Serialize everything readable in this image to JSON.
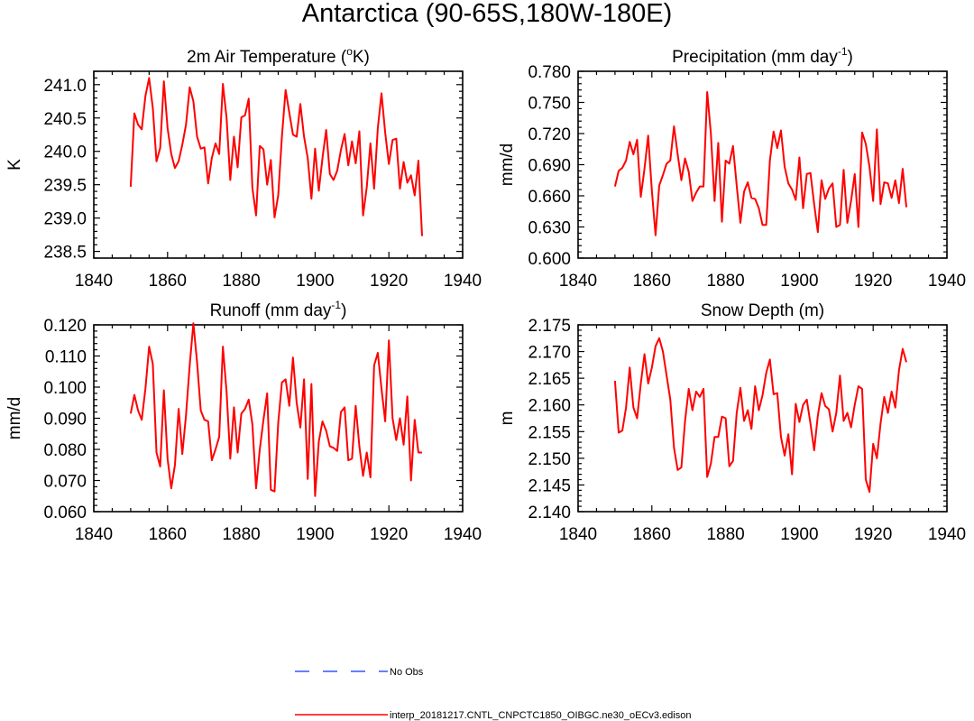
{
  "title": "Antarctica (90-65S,180W-180E)",
  "series_colors": {
    "model": "#ff0000",
    "obs": "#3355ff"
  },
  "legend": {
    "obs_label": "No Obs",
    "model_label": "interp_20181217.CNTL_CNPCTC1850_OIBGC.ne30_oECv3.edison"
  },
  "chart_data": [
    {
      "type": "line",
      "title": "2m Air Temperature (",
      "title_sup": "o",
      "title_after": "K)",
      "xlabel": "",
      "ylabel": "K",
      "xlim": [
        1840,
        1940
      ],
      "ylim": [
        238.4,
        241.2
      ],
      "xticks": [
        1840,
        1860,
        1880,
        1900,
        1920,
        1940
      ],
      "xtick_labels": [
        "1840",
        "1860",
        "1880",
        "1900",
        "1920",
        "1940"
      ],
      "yticks": [
        238.5,
        239.0,
        239.5,
        240.0,
        240.5,
        241.0
      ],
      "ytick_labels": [
        "238.5",
        "239.0",
        "239.5",
        "240.0",
        "240.5",
        "241.0"
      ],
      "series": [
        {
          "name": "interp_20181217.CNTL_CNPCTC1850_OIBGC.ne30_oECv3.edison",
          "x_start": 1850,
          "values": [
            239.47,
            240.57,
            240.4,
            240.33,
            240.83,
            241.1,
            240.65,
            239.85,
            240.05,
            241.05,
            240.35,
            239.96,
            239.75,
            239.85,
            240.1,
            240.4,
            240.96,
            240.75,
            240.22,
            240.04,
            240.06,
            239.52,
            239.9,
            240.12,
            239.96,
            241.01,
            240.5,
            239.57,
            240.22,
            239.76,
            240.51,
            240.54,
            240.79,
            239.45,
            239.04,
            240.08,
            240.03,
            239.5,
            239.87,
            239.01,
            239.34,
            240.22,
            240.92,
            240.58,
            240.25,
            240.22,
            240.71,
            240.22,
            239.9,
            239.29,
            240.04,
            239.41,
            239.9,
            240.32,
            239.66,
            239.57,
            239.71,
            240.02,
            240.26,
            239.79,
            240.15,
            239.82,
            240.3,
            239.04,
            239.46,
            240.12,
            239.44,
            240.35,
            240.87,
            240.28,
            239.81,
            240.17,
            240.19,
            239.44,
            239.84,
            239.53,
            239.64,
            239.34,
            239.86,
            238.73
          ]
        }
      ]
    },
    {
      "type": "line",
      "title": "Precipitation (mm day",
      "title_sup": "-1",
      "title_after": ")",
      "xlabel": "",
      "ylabel": "mm/d",
      "xlim": [
        1840,
        1940
      ],
      "ylim": [
        0.6,
        0.78
      ],
      "xticks": [
        1840,
        1860,
        1880,
        1900,
        1920,
        1940
      ],
      "xtick_labels": [
        "1840",
        "1860",
        "1880",
        "1900",
        "1920",
        "1940"
      ],
      "yticks": [
        0.6,
        0.63,
        0.66,
        0.69,
        0.72,
        0.75,
        0.78
      ],
      "ytick_labels": [
        "0.600",
        "0.630",
        "0.660",
        "0.690",
        "0.720",
        "0.750",
        "0.780"
      ],
      "series": [
        {
          "name": "interp_20181217.CNTL_CNPCTC1850_OIBGC.ne30_oECv3.edison",
          "x_start": 1850,
          "values": [
            0.669,
            0.684,
            0.687,
            0.694,
            0.712,
            0.7,
            0.714,
            0.659,
            0.686,
            0.718,
            0.665,
            0.622,
            0.67,
            0.68,
            0.691,
            0.694,
            0.727,
            0.7,
            0.675,
            0.696,
            0.683,
            0.655,
            0.663,
            0.669,
            0.669,
            0.76,
            0.72,
            0.655,
            0.711,
            0.635,
            0.694,
            0.691,
            0.708,
            0.67,
            0.634,
            0.664,
            0.673,
            0.658,
            0.657,
            0.648,
            0.632,
            0.632,
            0.694,
            0.722,
            0.706,
            0.723,
            0.688,
            0.672,
            0.666,
            0.656,
            0.697,
            0.648,
            0.681,
            0.682,
            0.652,
            0.625,
            0.675,
            0.657,
            0.667,
            0.672,
            0.63,
            0.632,
            0.685,
            0.634,
            0.655,
            0.681,
            0.63,
            0.721,
            0.71,
            0.688,
            0.655,
            0.724,
            0.652,
            0.673,
            0.672,
            0.658,
            0.675,
            0.653,
            0.686,
            0.649
          ]
        }
      ]
    },
    {
      "type": "line",
      "title": "Runoff (mm day",
      "title_sup": "-1",
      "title_after": ")",
      "xlabel": "",
      "ylabel": "mm/d",
      "xlim": [
        1840,
        1940
      ],
      "ylim": [
        0.06,
        0.12
      ],
      "xticks": [
        1840,
        1860,
        1880,
        1900,
        1920,
        1940
      ],
      "xtick_labels": [
        "1840",
        "1860",
        "1880",
        "1900",
        "1920",
        "1940"
      ],
      "yticks": [
        0.06,
        0.07,
        0.08,
        0.09,
        0.1,
        0.11,
        0.12
      ],
      "ytick_labels": [
        "0.060",
        "0.070",
        "0.080",
        "0.090",
        "0.100",
        "0.110",
        "0.120"
      ],
      "series": [
        {
          "name": "interp_20181217.CNTL_CNPCTC1850_OIBGC.ne30_oECv3.edison",
          "x_start": 1850,
          "values": [
            0.0915,
            0.0975,
            0.0925,
            0.0895,
            0.0995,
            0.113,
            0.1075,
            0.079,
            0.0745,
            0.099,
            0.077,
            0.0675,
            0.075,
            0.093,
            0.0785,
            0.091,
            0.107,
            0.1205,
            0.108,
            0.0925,
            0.0895,
            0.089,
            0.0765,
            0.08,
            0.084,
            0.113,
            0.0985,
            0.077,
            0.0935,
            0.079,
            0.0915,
            0.093,
            0.096,
            0.088,
            0.0675,
            0.08,
            0.0895,
            0.098,
            0.067,
            0.0665,
            0.0885,
            0.1015,
            0.1025,
            0.094,
            0.1095,
            0.095,
            0.087,
            0.1025,
            0.0705,
            0.101,
            0.065,
            0.0825,
            0.089,
            0.086,
            0.081,
            0.0805,
            0.0795,
            0.092,
            0.0935,
            0.0765,
            0.077,
            0.094,
            0.081,
            0.0715,
            0.079,
            0.071,
            0.107,
            0.111,
            0.0995,
            0.089,
            0.115,
            0.09,
            0.083,
            0.09,
            0.0815,
            0.097,
            0.07,
            0.0895,
            0.079,
            0.079
          ]
        }
      ]
    },
    {
      "type": "line",
      "title": "Snow Depth (m)",
      "title_sup": "",
      "title_after": "",
      "xlabel": "",
      "ylabel": "m",
      "xlim": [
        1840,
        1940
      ],
      "ylim": [
        2.14,
        2.175
      ],
      "xticks": [
        1840,
        1860,
        1880,
        1900,
        1920,
        1940
      ],
      "xtick_labels": [
        "1840",
        "1860",
        "1880",
        "1900",
        "1920",
        "1940"
      ],
      "yticks": [
        2.14,
        2.145,
        2.15,
        2.155,
        2.16,
        2.165,
        2.17,
        2.175
      ],
      "ytick_labels": [
        "2.140",
        "2.145",
        "2.150",
        "2.155",
        "2.160",
        "2.165",
        "2.170",
        "2.175"
      ],
      "series": [
        {
          "name": "interp_20181217.CNTL_CNPCTC1850_OIBGC.ne30_oECv3.edison",
          "x_start": 1850,
          "values": [
            2.1645,
            2.1548,
            2.1552,
            2.1595,
            2.167,
            2.1595,
            2.1575,
            2.164,
            2.1695,
            2.164,
            2.167,
            2.171,
            2.1725,
            2.17,
            2.1655,
            2.161,
            2.152,
            2.1478,
            2.1483,
            2.157,
            2.163,
            2.159,
            2.1625,
            2.1615,
            2.163,
            2.1465,
            2.149,
            2.154,
            2.154,
            2.1578,
            2.1575,
            2.1485,
            2.1495,
            2.1585,
            2.1632,
            2.157,
            2.159,
            2.1555,
            2.1635,
            2.159,
            2.1618,
            2.166,
            2.1685,
            2.162,
            2.1622,
            2.154,
            2.1505,
            2.1545,
            2.147,
            2.1602,
            2.1568,
            2.16,
            2.161,
            2.1565,
            2.1515,
            2.158,
            2.1622,
            2.1598,
            2.1592,
            2.155,
            2.1585,
            2.1655,
            2.157,
            2.1585,
            2.1558,
            2.16,
            2.1635,
            2.163,
            2.146,
            2.1437,
            2.1527,
            2.15,
            2.1565,
            2.1615,
            2.1585,
            2.1625,
            2.1595,
            2.1665,
            2.1705,
            2.168
          ]
        }
      ]
    }
  ]
}
